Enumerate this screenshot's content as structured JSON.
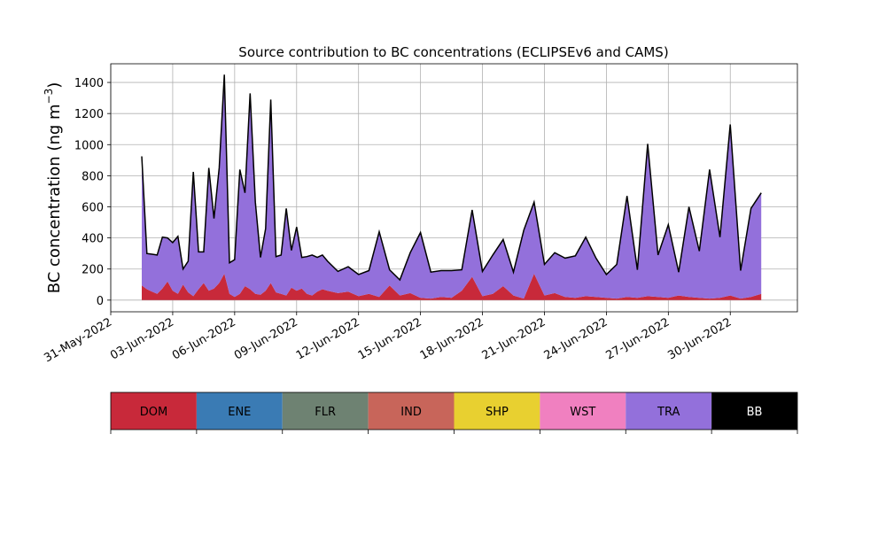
{
  "chart_data": {
    "type": "area",
    "title": "Source contribution to BC concentrations (ECLIPSEv6 and CAMS)",
    "ylabel": "BC concentration (ng m",
    "ylabel_sup": "−3",
    "ylabel_close": ")",
    "xlabel": "",
    "ylim": [
      -75,
      1520
    ],
    "xlim": [
      "2022-05-31T00:00",
      "2022-07-03T06:00"
    ],
    "yticks": [
      0,
      200,
      400,
      600,
      800,
      1000,
      1200,
      1400
    ],
    "xticks": [
      {
        "date": "2022-05-31",
        "label": "31-May-2022"
      },
      {
        "date": "2022-06-03",
        "label": "03-Jun-2022"
      },
      {
        "date": "2022-06-06",
        "label": "06-Jun-2022"
      },
      {
        "date": "2022-06-09",
        "label": "09-Jun-2022"
      },
      {
        "date": "2022-06-12",
        "label": "12-Jun-2022"
      },
      {
        "date": "2022-06-15",
        "label": "15-Jun-2022"
      },
      {
        "date": "2022-06-18",
        "label": "18-Jun-2022"
      },
      {
        "date": "2022-06-21",
        "label": "21-Jun-2022"
      },
      {
        "date": "2022-06-24",
        "label": "24-Jun-2022"
      },
      {
        "date": "2022-06-27",
        "label": "27-Jun-2022"
      },
      {
        "date": "2022-06-30",
        "label": "30-Jun-2022"
      }
    ],
    "grid": true,
    "legend": {
      "placement": "bottom colorbar",
      "entries": [
        {
          "label": "DOM",
          "color": "#c8293a",
          "text_color": "#000000"
        },
        {
          "label": "ENE",
          "color": "#3a7bb4",
          "text_color": "#000000"
        },
        {
          "label": "FLR",
          "color": "#6e8272",
          "text_color": "#000000"
        },
        {
          "label": "IND",
          "color": "#c8655a",
          "text_color": "#000000"
        },
        {
          "label": "SHP",
          "color": "#e8d030",
          "text_color": "#000000"
        },
        {
          "label": "WST",
          "color": "#f080c0",
          "text_color": "#000000"
        },
        {
          "label": "TRA",
          "color": "#9370db",
          "text_color": "#000000"
        },
        {
          "label": "BB",
          "color": "#000000",
          "text_color": "#ffffff"
        }
      ]
    },
    "series": [
      {
        "name": "DOM",
        "color": "#c8293a",
        "x": [
          "2022-06-01T12:00",
          "2022-06-01T18:00",
          "2022-06-02T00:00",
          "2022-06-02T06:00",
          "2022-06-02T12:00",
          "2022-06-02T18:00",
          "2022-06-03T00:00",
          "2022-06-03T06:00",
          "2022-06-03T12:00",
          "2022-06-03T18:00",
          "2022-06-04T00:00",
          "2022-06-04T06:00",
          "2022-06-04T12:00",
          "2022-06-04T18:00",
          "2022-06-05T00:00",
          "2022-06-05T06:00",
          "2022-06-05T12:00",
          "2022-06-05T18:00",
          "2022-06-06T00:00",
          "2022-06-06T06:00",
          "2022-06-06T12:00",
          "2022-06-06T18:00",
          "2022-06-07T00:00",
          "2022-06-07T06:00",
          "2022-06-07T12:00",
          "2022-06-07T18:00",
          "2022-06-08T00:00",
          "2022-06-08T06:00",
          "2022-06-08T12:00",
          "2022-06-08T18:00",
          "2022-06-09T00:00",
          "2022-06-09T06:00",
          "2022-06-09T12:00",
          "2022-06-09T18:00",
          "2022-06-10T00:00",
          "2022-06-10T06:00",
          "2022-06-10T12:00",
          "2022-06-11T00:00",
          "2022-06-11T12:00",
          "2022-06-12T00:00",
          "2022-06-12T12:00",
          "2022-06-13T00:00",
          "2022-06-13T12:00",
          "2022-06-14T00:00",
          "2022-06-14T12:00",
          "2022-06-15T00:00",
          "2022-06-15T12:00",
          "2022-06-16T00:00",
          "2022-06-16T12:00",
          "2022-06-17T00:00",
          "2022-06-17T12:00",
          "2022-06-18T00:00",
          "2022-06-18T12:00",
          "2022-06-19T00:00",
          "2022-06-19T12:00",
          "2022-06-20T00:00",
          "2022-06-20T12:00",
          "2022-06-21T00:00",
          "2022-06-21T12:00",
          "2022-06-22T00:00",
          "2022-06-22T12:00",
          "2022-06-23T00:00",
          "2022-06-23T12:00",
          "2022-06-24T00:00",
          "2022-06-24T12:00",
          "2022-06-25T00:00",
          "2022-06-25T12:00",
          "2022-06-26T00:00",
          "2022-06-26T12:00",
          "2022-06-27T00:00",
          "2022-06-27T12:00",
          "2022-06-28T00:00",
          "2022-06-28T12:00",
          "2022-06-29T00:00",
          "2022-06-29T12:00",
          "2022-06-30T00:00",
          "2022-06-30T12:00",
          "2022-07-01T00:00",
          "2022-07-01T12:00"
        ],
        "values": [
          95,
          70,
          55,
          40,
          75,
          120,
          60,
          40,
          100,
          50,
          25,
          70,
          110,
          60,
          75,
          110,
          170,
          40,
          20,
          40,
          90,
          70,
          40,
          35,
          60,
          110,
          50,
          40,
          30,
          80,
          60,
          75,
          40,
          30,
          55,
          70,
          60,
          45,
          55,
          25,
          40,
          20,
          95,
          30,
          45,
          15,
          10,
          20,
          15,
          60,
          150,
          25,
          40,
          90,
          30,
          10,
          170,
          30,
          45,
          20,
          15,
          25,
          20,
          15,
          10,
          20,
          15,
          25,
          20,
          15,
          30,
          20,
          15,
          10,
          15,
          30,
          10,
          20,
          40
        ]
      },
      {
        "name": "TRA",
        "color": "#9370db",
        "x": [
          "2022-06-01T12:00",
          "2022-06-01T18:00",
          "2022-06-02T00:00",
          "2022-06-02T06:00",
          "2022-06-02T12:00",
          "2022-06-02T18:00",
          "2022-06-03T00:00",
          "2022-06-03T06:00",
          "2022-06-03T12:00",
          "2022-06-03T18:00",
          "2022-06-04T00:00",
          "2022-06-04T06:00",
          "2022-06-04T12:00",
          "2022-06-04T18:00",
          "2022-06-05T00:00",
          "2022-06-05T06:00",
          "2022-06-05T12:00",
          "2022-06-05T18:00",
          "2022-06-06T00:00",
          "2022-06-06T06:00",
          "2022-06-06T12:00",
          "2022-06-06T18:00",
          "2022-06-07T00:00",
          "2022-06-07T06:00",
          "2022-06-07T12:00",
          "2022-06-07T18:00",
          "2022-06-08T00:00",
          "2022-06-08T06:00",
          "2022-06-08T12:00",
          "2022-06-08T18:00",
          "2022-06-09T00:00",
          "2022-06-09T06:00",
          "2022-06-09T12:00",
          "2022-06-09T18:00",
          "2022-06-10T00:00",
          "2022-06-10T06:00",
          "2022-06-10T12:00",
          "2022-06-11T00:00",
          "2022-06-11T12:00",
          "2022-06-12T00:00",
          "2022-06-12T12:00",
          "2022-06-13T00:00",
          "2022-06-13T12:00",
          "2022-06-14T00:00",
          "2022-06-14T12:00",
          "2022-06-15T00:00",
          "2022-06-15T12:00",
          "2022-06-16T00:00",
          "2022-06-16T12:00",
          "2022-06-17T00:00",
          "2022-06-17T12:00",
          "2022-06-18T00:00",
          "2022-06-18T12:00",
          "2022-06-19T00:00",
          "2022-06-19T12:00",
          "2022-06-20T00:00",
          "2022-06-20T12:00",
          "2022-06-21T00:00",
          "2022-06-21T12:00",
          "2022-06-22T00:00",
          "2022-06-22T12:00",
          "2022-06-23T00:00",
          "2022-06-23T12:00",
          "2022-06-24T00:00",
          "2022-06-24T12:00",
          "2022-06-25T00:00",
          "2022-06-25T12:00",
          "2022-06-26T00:00",
          "2022-06-26T12:00",
          "2022-06-27T00:00",
          "2022-06-27T12:00",
          "2022-06-28T00:00",
          "2022-06-28T12:00",
          "2022-06-29T00:00",
          "2022-06-29T12:00",
          "2022-06-30T00:00",
          "2022-06-30T12:00",
          "2022-07-01T00:00",
          "2022-07-01T12:00"
        ],
        "values": [
          830,
          230,
          240,
          250,
          330,
          280,
          310,
          370,
          100,
          200,
          800,
          240,
          200,
          790,
          450,
          740,
          1280,
          200,
          240,
          800,
          600,
          1260,
          590,
          240,
          400,
          1180,
          230,
          250,
          560,
          240,
          410,
          200,
          240,
          260,
          220,
          220,
          190,
          140,
          160,
          140,
          150,
          420,
          100,
          100,
          260,
          420,
          170,
          170,
          175,
          135,
          430,
          160,
          250,
          300,
          150,
          440,
          460,
          200,
          260,
          250,
          270,
          380,
          250,
          150,
          220,
          650,
          180,
          980,
          270,
          470,
          150,
          580,
          300,
          830,
          390,
          1100,
          180,
          570,
          650
        ]
      },
      {
        "name": "BB",
        "color": "#000000",
        "x": [
          "2022-06-01T12:00",
          "2022-06-01T18:00",
          "2022-06-02T00:00",
          "2022-06-02T06:00",
          "2022-06-02T12:00",
          "2022-06-02T18:00",
          "2022-06-03T00:00",
          "2022-06-03T06:00",
          "2022-06-03T12:00",
          "2022-06-03T18:00",
          "2022-06-04T00:00",
          "2022-06-04T06:00",
          "2022-06-04T12:00",
          "2022-06-04T18:00",
          "2022-06-05T00:00",
          "2022-06-05T06:00",
          "2022-06-05T12:00",
          "2022-06-05T18:00",
          "2022-06-06T00:00",
          "2022-06-06T06:00",
          "2022-06-06T12:00",
          "2022-06-06T18:00",
          "2022-06-07T00:00",
          "2022-06-07T06:00",
          "2022-06-07T12:00",
          "2022-06-07T18:00",
          "2022-06-08T00:00",
          "2022-06-08T06:00",
          "2022-06-08T12:00",
          "2022-06-08T18:00",
          "2022-06-09T00:00",
          "2022-06-09T06:00",
          "2022-06-09T12:00",
          "2022-06-09T18:00",
          "2022-06-10T00:00",
          "2022-06-10T06:00",
          "2022-06-10T12:00",
          "2022-06-11T00:00",
          "2022-06-11T12:00",
          "2022-06-12T00:00",
          "2022-06-12T12:00",
          "2022-06-13T00:00",
          "2022-06-13T12:00",
          "2022-06-14T00:00",
          "2022-06-14T12:00",
          "2022-06-15T00:00",
          "2022-06-15T12:00",
          "2022-06-16T00:00",
          "2022-06-16T12:00",
          "2022-06-17T00:00",
          "2022-06-17T12:00",
          "2022-06-18T00:00",
          "2022-06-18T12:00",
          "2022-06-19T00:00",
          "2022-06-19T12:00",
          "2022-06-20T00:00",
          "2022-06-20T12:00",
          "2022-06-21T00:00",
          "2022-06-21T12:00",
          "2022-06-22T00:00",
          "2022-06-22T12:00",
          "2022-06-23T00:00",
          "2022-06-23T12:00",
          "2022-06-24T00:00",
          "2022-06-24T12:00",
          "2022-06-25T00:00",
          "2022-06-25T12:00",
          "2022-06-26T00:00",
          "2022-06-26T12:00",
          "2022-06-27T00:00",
          "2022-06-27T12:00",
          "2022-06-28T00:00",
          "2022-06-28T12:00",
          "2022-06-29T00:00",
          "2022-06-29T12:00",
          "2022-06-30T00:00",
          "2022-06-30T12:00",
          "2022-07-01T00:00",
          "2022-07-01T12:00"
        ],
        "values": [
          0,
          0,
          0,
          0,
          0,
          0,
          0,
          0,
          0,
          0,
          0,
          0,
          0,
          0,
          0,
          0,
          0,
          0,
          0,
          0,
          0,
          0,
          0,
          0,
          0,
          0,
          0,
          0,
          0,
          0,
          0,
          0,
          0,
          0,
          0,
          0,
          0,
          0,
          0,
          0,
          0,
          0,
          0,
          0,
          0,
          0,
          0,
          0,
          0,
          0,
          0,
          0,
          0,
          0,
          0,
          0,
          0,
          0,
          0,
          0,
          0,
          0,
          0,
          0,
          0,
          0,
          0,
          0,
          0,
          0,
          0,
          0,
          0,
          0,
          0,
          0,
          0,
          0,
          0
        ]
      }
    ]
  }
}
